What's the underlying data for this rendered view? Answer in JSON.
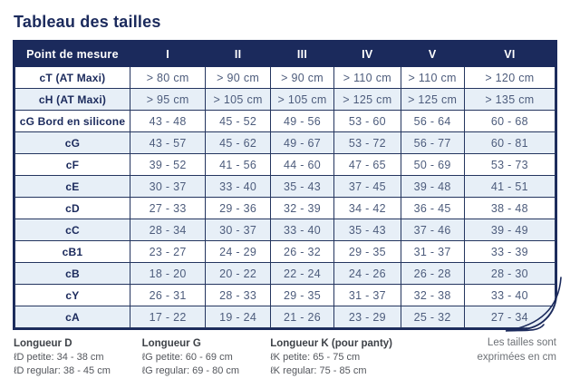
{
  "title": "Tableau des tailles",
  "table": {
    "measure_header": "Point de mesure",
    "size_columns": [
      "I",
      "II",
      "III",
      "IV",
      "V",
      "VI"
    ],
    "rows": [
      {
        "label": "cT (AT Maxi)",
        "values": [
          "> 80 cm",
          "> 90 cm",
          "> 90 cm",
          "> 110 cm",
          "> 110 cm",
          "> 120 cm"
        ]
      },
      {
        "label": "cH (AT Maxi)",
        "values": [
          "> 95 cm",
          "> 105 cm",
          "> 105 cm",
          "> 125 cm",
          "> 125 cm",
          "> 135 cm"
        ]
      },
      {
        "label": "cG  Bord en silicone",
        "values": [
          "43 - 48",
          "45 - 52",
          "49 - 56",
          "53 - 60",
          "56 - 64",
          "60 - 68"
        ]
      },
      {
        "label": "cG",
        "values": [
          "43 - 57",
          "45 - 62",
          "49 - 67",
          "53 - 72",
          "56 - 77",
          "60 - 81"
        ]
      },
      {
        "label": "cF",
        "values": [
          "39 - 52",
          "41 - 56",
          "44 - 60",
          "47 - 65",
          "50 - 69",
          "53 - 73"
        ]
      },
      {
        "label": "cE",
        "values": [
          "30 - 37",
          "33 - 40",
          "35 - 43",
          "37 - 45",
          "39 - 48",
          "41 - 51"
        ]
      },
      {
        "label": "cD",
        "values": [
          "27 - 33",
          "29 - 36",
          "32 - 39",
          "34 - 42",
          "36 - 45",
          "38 - 48"
        ]
      },
      {
        "label": "cC",
        "values": [
          "28 - 34",
          "30 - 37",
          "33 - 40",
          "35 - 43",
          "37 - 46",
          "39 - 49"
        ]
      },
      {
        "label": "cB1",
        "values": [
          "23 - 27",
          "24 - 29",
          "26 - 32",
          "29 - 35",
          "31 - 37",
          "33 - 39"
        ]
      },
      {
        "label": "cB",
        "values": [
          "18 - 20",
          "20 - 22",
          "22 - 24",
          "24 - 26",
          "26 - 28",
          "28 - 30"
        ]
      },
      {
        "label": "cY",
        "values": [
          "26 - 31",
          "28 - 33",
          "29 - 35",
          "31 - 37",
          "32 - 38",
          "33 - 40"
        ]
      },
      {
        "label": "cA",
        "values": [
          "17 - 22",
          "19 - 24",
          "21 - 26",
          "23 - 29",
          "25 - 32",
          "27 - 34"
        ]
      }
    ]
  },
  "footer": {
    "lengths": [
      {
        "title": "Longueur D",
        "lines": [
          "ℓD petite: 34 - 38 cm",
          "ℓD regular: 38 - 45 cm"
        ]
      },
      {
        "title": "Longueur G",
        "lines": [
          "ℓG petite: 60 - 69 cm",
          "ℓG regular: 69 - 80 cm"
        ]
      },
      {
        "title": "Longueur K (pour panty)",
        "lines": [
          "ℓK petite: 65 - 75 cm",
          "ℓK regular: 75 - 85 cm"
        ]
      }
    ],
    "note": "Les tailles sont exprimées en cm"
  },
  "colors": {
    "navy": "#1b2a5c",
    "row_alt": "#e7eff7",
    "cell_text": "#4d5c7c",
    "footer_text": "#53565c",
    "note_text": "#6e7277"
  }
}
